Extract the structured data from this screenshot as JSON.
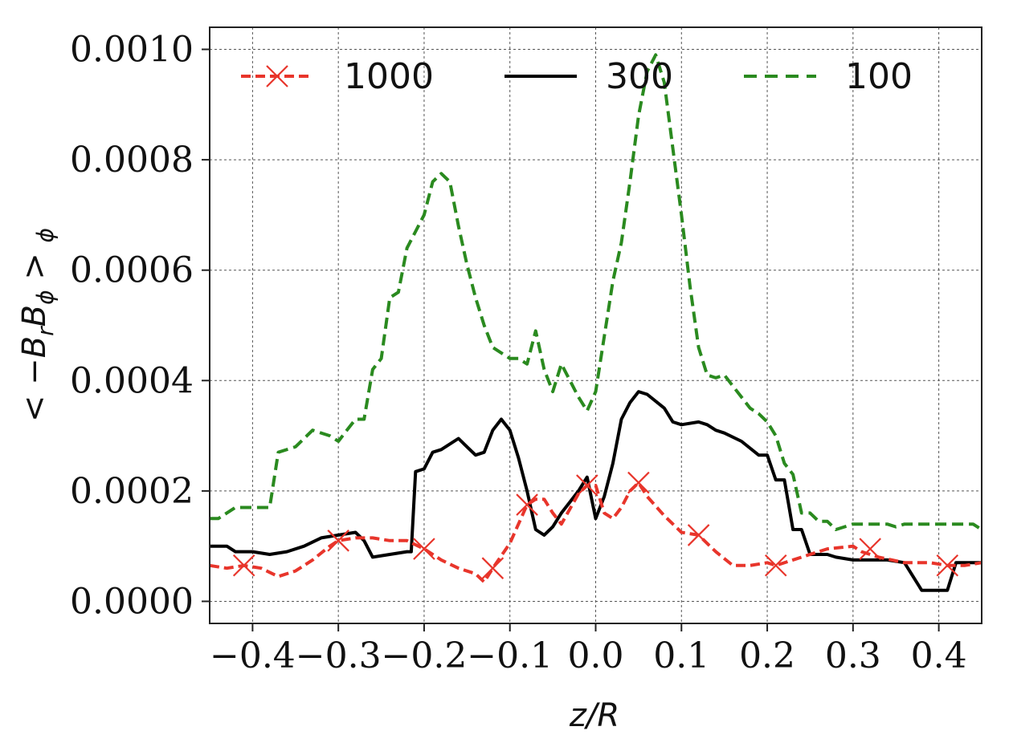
{
  "chart_data": {
    "type": "line",
    "xlabel": "z/R",
    "ylabel": "< −B_r B_ϕ >_ϕ",
    "xlim": [
      -0.45,
      0.45
    ],
    "ylim": [
      -4e-05,
      0.00104
    ],
    "grid": true,
    "legend_position": "top",
    "x_ticks": [
      -0.4,
      -0.3,
      -0.2,
      -0.1,
      0.0,
      0.1,
      0.2,
      0.3,
      0.4
    ],
    "x_tick_labels": [
      "−0.4",
      "−0.3",
      "−0.2",
      "−0.1",
      "0.0",
      "0.1",
      "0.2",
      "0.3",
      "0.4"
    ],
    "y_ticks": [
      0.0,
      0.0002,
      0.0004,
      0.0006,
      0.0008,
      0.001
    ],
    "y_tick_labels": [
      "0.0000",
      "0.0002",
      "0.0004",
      "0.0006",
      "0.0008",
      "0.0010"
    ],
    "series": [
      {
        "name": "1000",
        "color": "#e8352b",
        "style": "dashed-with-x-markers",
        "x": [
          -0.45,
          -0.43,
          -0.41,
          -0.39,
          -0.37,
          -0.35,
          -0.33,
          -0.31,
          -0.3,
          -0.28,
          -0.26,
          -0.24,
          -0.22,
          -0.2,
          -0.18,
          -0.16,
          -0.14,
          -0.13,
          -0.12,
          -0.1,
          -0.08,
          -0.07,
          -0.06,
          -0.05,
          -0.04,
          -0.02,
          -0.01,
          0.0,
          0.01,
          0.02,
          0.03,
          0.04,
          0.05,
          0.06,
          0.08,
          0.1,
          0.12,
          0.14,
          0.16,
          0.18,
          0.2,
          0.21,
          0.24,
          0.27,
          0.3,
          0.31,
          0.33,
          0.36,
          0.39,
          0.41,
          0.43,
          0.45
        ],
        "y": [
          6.5e-05,
          6e-05,
          6.5e-05,
          6e-05,
          4.5e-05,
          5.5e-05,
          7.5e-05,
          0.0001,
          0.00011,
          0.000115,
          0.000115,
          0.00011,
          0.00011,
          9.5e-05,
          7.5e-05,
          6e-05,
          5e-05,
          3.5e-05,
          6e-05,
          0.000105,
          0.000175,
          0.000185,
          0.000185,
          0.00016,
          0.00014,
          0.000195,
          0.00021,
          0.00021,
          0.00016,
          0.00015,
          0.00017,
          0.0002,
          0.000215,
          0.00019,
          0.000155,
          0.000125,
          0.00012,
          9e-05,
          6.5e-05,
          6.5e-05,
          7e-05,
          6.5e-05,
          8e-05,
          9.5e-05,
          0.0001,
          9e-05,
          8e-05,
          7e-05,
          7e-05,
          6.5e-05,
          6.5e-05,
          7e-05
        ],
        "marker_x": [
          -0.41,
          -0.3,
          -0.2,
          -0.12,
          -0.08,
          -0.01,
          0.05,
          0.12,
          0.21,
          0.32,
          0.41
        ],
        "marker_y": [
          6.5e-05,
          0.00011,
          9.5e-05,
          6e-05,
          0.000175,
          0.00021,
          0.000215,
          0.00012,
          6.5e-05,
          9.5e-05,
          6.5e-05
        ]
      },
      {
        "name": "300",
        "color": "#000000",
        "style": "solid",
        "x": [
          -0.45,
          -0.43,
          -0.42,
          -0.4,
          -0.38,
          -0.36,
          -0.34,
          -0.32,
          -0.3,
          -0.28,
          -0.27,
          -0.26,
          -0.24,
          -0.22,
          -0.215,
          -0.21,
          -0.2,
          -0.19,
          -0.18,
          -0.16,
          -0.15,
          -0.14,
          -0.13,
          -0.12,
          -0.11,
          -0.1,
          -0.09,
          -0.08,
          -0.07,
          -0.06,
          -0.05,
          -0.04,
          -0.03,
          -0.02,
          -0.01,
          0.0,
          0.01,
          0.02,
          0.03,
          0.04,
          0.05,
          0.06,
          0.08,
          0.09,
          0.1,
          0.12,
          0.13,
          0.14,
          0.15,
          0.17,
          0.19,
          0.2,
          0.21,
          0.22,
          0.23,
          0.24,
          0.25,
          0.26,
          0.27,
          0.28,
          0.3,
          0.32,
          0.34,
          0.36,
          0.38,
          0.39,
          0.4,
          0.41,
          0.42,
          0.43,
          0.44,
          0.45
        ],
        "y": [
          0.0001,
          0.0001,
          9e-05,
          9e-05,
          8.5e-05,
          9e-05,
          0.0001,
          0.000115,
          0.00012,
          0.000125,
          0.00011,
          8e-05,
          8.5e-05,
          9e-05,
          9e-05,
          0.000235,
          0.00024,
          0.00027,
          0.000275,
          0.000295,
          0.00028,
          0.000265,
          0.00027,
          0.00031,
          0.00033,
          0.00031,
          0.00026,
          0.0002,
          0.00013,
          0.00012,
          0.000135,
          0.00016,
          0.00018,
          0.0002,
          0.000225,
          0.00015,
          0.00019,
          0.00025,
          0.00033,
          0.00036,
          0.00038,
          0.000375,
          0.00035,
          0.000325,
          0.00032,
          0.000325,
          0.00032,
          0.00031,
          0.000305,
          0.00029,
          0.000265,
          0.000265,
          0.00022,
          0.00022,
          0.00013,
          0.00013,
          8.5e-05,
          8.5e-05,
          8.5e-05,
          8e-05,
          7.5e-05,
          7.5e-05,
          7.5e-05,
          7e-05,
          2e-05,
          2e-05,
          2e-05,
          2e-05,
          7e-05,
          7e-05,
          7e-05,
          7e-05
        ]
      },
      {
        "name": "100",
        "color": "#2a8a1f",
        "style": "dashed",
        "x": [
          -0.45,
          -0.44,
          -0.42,
          -0.4,
          -0.38,
          -0.37,
          -0.35,
          -0.33,
          -0.31,
          -0.3,
          -0.29,
          -0.28,
          -0.27,
          -0.26,
          -0.25,
          -0.24,
          -0.23,
          -0.22,
          -0.21,
          -0.2,
          -0.19,
          -0.18,
          -0.17,
          -0.16,
          -0.15,
          -0.14,
          -0.13,
          -0.12,
          -0.1,
          -0.09,
          -0.08,
          -0.07,
          -0.06,
          -0.05,
          -0.04,
          -0.03,
          -0.02,
          -0.01,
          0.0,
          0.01,
          0.02,
          0.03,
          0.04,
          0.05,
          0.06,
          0.07,
          0.08,
          0.09,
          0.1,
          0.11,
          0.12,
          0.13,
          0.14,
          0.15,
          0.16,
          0.17,
          0.18,
          0.19,
          0.2,
          0.21,
          0.22,
          0.23,
          0.24,
          0.25,
          0.26,
          0.27,
          0.28,
          0.29,
          0.3,
          0.31,
          0.32,
          0.33,
          0.34,
          0.35,
          0.36,
          0.37,
          0.38,
          0.39,
          0.4,
          0.41,
          0.42,
          0.43,
          0.44,
          0.45
        ],
        "y": [
          0.00015,
          0.00015,
          0.00017,
          0.00017,
          0.00017,
          0.00027,
          0.00028,
          0.00031,
          0.0003,
          0.00029,
          0.00031,
          0.00033,
          0.00033,
          0.00042,
          0.00044,
          0.00055,
          0.00056,
          0.00064,
          0.00067,
          0.0007,
          0.00076,
          0.000775,
          0.00076,
          0.00068,
          0.00061,
          0.00055,
          0.0005,
          0.00046,
          0.00044,
          0.00044,
          0.00043,
          0.00049,
          0.00042,
          0.00038,
          0.00043,
          0.0004,
          0.00037,
          0.000345,
          0.00038,
          0.00048,
          0.00058,
          0.00065,
          0.00076,
          0.00088,
          0.00096,
          0.00099,
          0.00094,
          0.00082,
          0.0007,
          0.00057,
          0.00046,
          0.00041,
          0.000405,
          0.00041,
          0.00039,
          0.00037,
          0.00035,
          0.00034,
          0.000325,
          0.0003,
          0.00025,
          0.00023,
          0.00016,
          0.00016,
          0.000145,
          0.000145,
          0.00013,
          0.000135,
          0.00014,
          0.00014,
          0.00014,
          0.00014,
          0.00014,
          0.000135,
          0.00014,
          0.00014,
          0.00014,
          0.00014,
          0.00014,
          0.00014,
          0.00014,
          0.00014,
          0.00014,
          0.00013
        ]
      }
    ]
  }
}
